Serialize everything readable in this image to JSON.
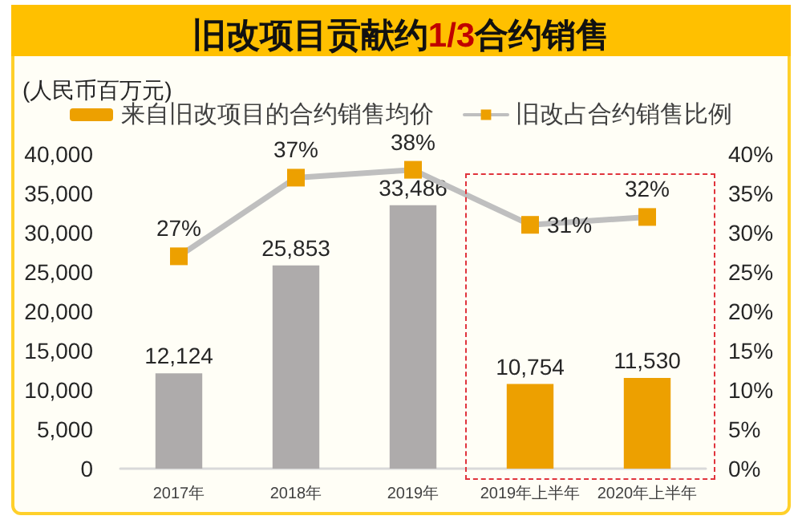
{
  "chart_data": {
    "type": "bar",
    "title": "旧改项目贡献约1/3合约销售",
    "ylabel": "(人民币百万元)",
    "categories": [
      "2017年",
      "2018年",
      "2019年",
      "2019年上半年",
      "2020年上半年"
    ],
    "series": [
      {
        "name": "来自旧改项目的合约销售均价",
        "color": "#eda000",
        "colors": [
          "#aeabab",
          "#aeabab",
          "#aeabab",
          "#eda000",
          "#eda000"
        ],
        "values": [
          12124,
          25853,
          33486,
          10754,
          11530
        ],
        "value_labels": [
          "12,124",
          "25,853",
          "33,486",
          "10,754",
          "11,530"
        ]
      },
      {
        "name": "旧改占合约销售比例",
        "type": "line",
        "axis": "y2",
        "color": "#bfbfbf",
        "colors": [
          "#eda000",
          "#eda000",
          "#eda000",
          "#eda000",
          "#eda000"
        ],
        "values": [
          27,
          37,
          38,
          31,
          32
        ],
        "value_labels": [
          "27%",
          "37%",
          "38%",
          "31%",
          "32%"
        ]
      }
    ],
    "ylim": [
      0,
      40000
    ],
    "yticks": [
      0,
      {
        "value": 5000,
        "label": "5,000"
      },
      {
        "value": 10000,
        "label": "10,000"
      },
      {
        "value": 15000,
        "label": "15,000"
      },
      {
        "value": 20000,
        "label": "20,000"
      },
      {
        "value": 25000,
        "label": "25,000"
      },
      {
        "value": 30000,
        "label": "30,000"
      },
      {
        "value": 35000,
        "label": "35,000"
      },
      {
        "value": 40000,
        "label": "40,000"
      }
    ],
    "y2lim": [
      0,
      40
    ],
    "y2ticks": [
      {
        "value": 0,
        "label": "0%"
      },
      {
        "value": 5,
        "label": "5%"
      },
      {
        "value": 10,
        "label": "10%"
      },
      {
        "value": 15,
        "label": "15%"
      },
      {
        "value": 20,
        "label": "20%"
      },
      {
        "value": 25,
        "label": "25%"
      },
      {
        "value": 30,
        "label": "30%"
      },
      {
        "value": 35,
        "label": "35%"
      },
      {
        "value": 40,
        "label": "40%"
      }
    ],
    "marker": "square",
    "grid": false,
    "legend": "top"
  }
}
